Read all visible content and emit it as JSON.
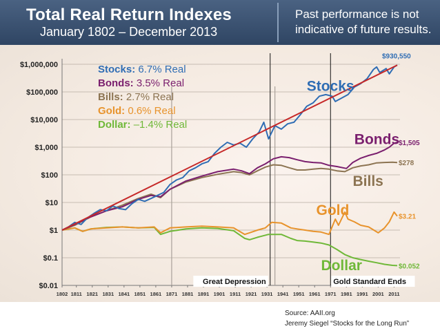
{
  "header": {
    "title": "Total Real Return Indexes",
    "subtitle": "January 1802 – December 2013",
    "disclaimer_line1": "Past performance is not",
    "disclaimer_line2": "indicative of future results."
  },
  "source": {
    "line1": "Source:  AAII.org",
    "line2": "Jeremy Siegel “Stocks for the Long Run”"
  },
  "colors": {
    "stocks": "#2f6db4",
    "bonds": "#7a1f6e",
    "bills": "#8c7452",
    "gold": "#e8932c",
    "dollar": "#6fb838",
    "trend": "#c62828",
    "grid": "#8c8c8c"
  },
  "chart_data": {
    "type": "line",
    "y_scale": "log",
    "ylim": [
      0.01,
      1000000
    ],
    "xlim": [
      1802,
      2013
    ],
    "y_ticks": [
      {
        "value": 1000000,
        "label": "$1,000,000"
      },
      {
        "value": 100000,
        "label": "$100,000"
      },
      {
        "value": 10000,
        "label": "$10,000"
      },
      {
        "value": 1000,
        "label": "$1,000"
      },
      {
        "value": 100,
        "label": "$100"
      },
      {
        "value": 10,
        "label": "$10"
      },
      {
        "value": 1,
        "label": "$1"
      },
      {
        "value": 0.1,
        "label": "$0.1"
      },
      {
        "value": 0.01,
        "label": "$0.01"
      }
    ],
    "x_ticks": [
      "1802",
      "1811",
      "1821",
      "1831",
      "1841",
      "1851",
      "1861",
      "1871",
      "1881",
      "1891",
      "1901",
      "1911",
      "1921",
      "1931",
      "1941",
      "1951",
      "1961",
      "1971",
      "1981",
      "1991",
      "2001",
      "2011"
    ],
    "legend": [
      {
        "name": "Stocks:",
        "rate": "6.7% Real",
        "key": "stocks"
      },
      {
        "name": "Bonds:",
        "rate": "3.5% Real",
        "key": "bonds"
      },
      {
        "name": "Bills:",
        "rate": "2.7% Real",
        "key": "bills"
      },
      {
        "name": "Gold:",
        "rate": "0.6% Real",
        "key": "gold"
      },
      {
        "name": "Dollar:",
        "rate": "–1.4% Real",
        "key": "dollar"
      }
    ],
    "series": [
      {
        "name": "Stocks",
        "key": "stocks",
        "end_label": "$930,550",
        "points": [
          [
            1802,
            1
          ],
          [
            1806,
            1.3
          ],
          [
            1810,
            1.9
          ],
          [
            1814,
            1.6
          ],
          [
            1818,
            2.8
          ],
          [
            1822,
            4
          ],
          [
            1826,
            5.5
          ],
          [
            1830,
            5
          ],
          [
            1834,
            7.5
          ],
          [
            1838,
            6
          ],
          [
            1842,
            5.5
          ],
          [
            1846,
            9
          ],
          [
            1850,
            13
          ],
          [
            1854,
            11
          ],
          [
            1858,
            14
          ],
          [
            1862,
            18
          ],
          [
            1866,
            23
          ],
          [
            1870,
            45
          ],
          [
            1874,
            65
          ],
          [
            1878,
            80
          ],
          [
            1882,
            140
          ],
          [
            1886,
            180
          ],
          [
            1890,
            250
          ],
          [
            1894,
            300
          ],
          [
            1898,
            600
          ],
          [
            1902,
            1000
          ],
          [
            1906,
            1500
          ],
          [
            1910,
            1200
          ],
          [
            1914,
            1400
          ],
          [
            1918,
            1000
          ],
          [
            1922,
            2000
          ],
          [
            1926,
            3500
          ],
          [
            1929,
            8000
          ],
          [
            1932,
            2000
          ],
          [
            1936,
            6000
          ],
          [
            1940,
            4500
          ],
          [
            1944,
            7000
          ],
          [
            1948,
            8000
          ],
          [
            1952,
            15000
          ],
          [
            1956,
            30000
          ],
          [
            1960,
            40000
          ],
          [
            1964,
            70000
          ],
          [
            1968,
            80000
          ],
          [
            1972,
            70000
          ],
          [
            1974,
            45000
          ],
          [
            1978,
            60000
          ],
          [
            1982,
            80000
          ],
          [
            1986,
            150000
          ],
          [
            1990,
            200000
          ],
          [
            1994,
            300000
          ],
          [
            1998,
            650000
          ],
          [
            2000,
            800000
          ],
          [
            2002,
            500000
          ],
          [
            2006,
            700000
          ],
          [
            2008,
            450000
          ],
          [
            2011,
            800000
          ],
          [
            2013,
            930550
          ]
        ]
      },
      {
        "name": "Bonds",
        "key": "bonds",
        "end_label": "$1,505",
        "points": [
          [
            1802,
            1
          ],
          [
            1810,
            1.6
          ],
          [
            1820,
            3
          ],
          [
            1830,
            5
          ],
          [
            1840,
            7
          ],
          [
            1850,
            13
          ],
          [
            1858,
            18
          ],
          [
            1864,
            16
          ],
          [
            1870,
            30
          ],
          [
            1880,
            60
          ],
          [
            1890,
            90
          ],
          [
            1900,
            130
          ],
          [
            1910,
            160
          ],
          [
            1915,
            140
          ],
          [
            1920,
            110
          ],
          [
            1925,
            180
          ],
          [
            1930,
            250
          ],
          [
            1935,
            380
          ],
          [
            1940,
            450
          ],
          [
            1945,
            420
          ],
          [
            1950,
            350
          ],
          [
            1955,
            300
          ],
          [
            1960,
            280
          ],
          [
            1965,
            270
          ],
          [
            1970,
            220
          ],
          [
            1975,
            200
          ],
          [
            1981,
            170
          ],
          [
            1985,
            280
          ],
          [
            1990,
            400
          ],
          [
            1995,
            500
          ],
          [
            2000,
            600
          ],
          [
            2005,
            800
          ],
          [
            2008,
            1000
          ],
          [
            2011,
            1400
          ],
          [
            2013,
            1505
          ]
        ]
      },
      {
        "name": "Bills",
        "key": "bills",
        "end_label": "$278",
        "points": [
          [
            1802,
            1
          ],
          [
            1810,
            1.5
          ],
          [
            1820,
            3
          ],
          [
            1830,
            5
          ],
          [
            1840,
            8
          ],
          [
            1850,
            14
          ],
          [
            1858,
            20
          ],
          [
            1864,
            15
          ],
          [
            1870,
            30
          ],
          [
            1880,
            55
          ],
          [
            1890,
            80
          ],
          [
            1900,
            105
          ],
          [
            1910,
            130
          ],
          [
            1915,
            120
          ],
          [
            1920,
            100
          ],
          [
            1925,
            140
          ],
          [
            1930,
            190
          ],
          [
            1935,
            230
          ],
          [
            1940,
            220
          ],
          [
            1945,
            180
          ],
          [
            1950,
            150
          ],
          [
            1955,
            150
          ],
          [
            1960,
            160
          ],
          [
            1965,
            170
          ],
          [
            1970,
            160
          ],
          [
            1975,
            140
          ],
          [
            1980,
            130
          ],
          [
            1985,
            180
          ],
          [
            1990,
            210
          ],
          [
            1995,
            230
          ],
          [
            2000,
            270
          ],
          [
            2005,
            280
          ],
          [
            2010,
            285
          ],
          [
            2013,
            278
          ]
        ]
      },
      {
        "name": "Gold",
        "key": "gold",
        "end_label": "$3.21",
        "points": [
          [
            1802,
            1
          ],
          [
            1810,
            1.2
          ],
          [
            1815,
            0.9
          ],
          [
            1820,
            1.1
          ],
          [
            1830,
            1.2
          ],
          [
            1840,
            1.3
          ],
          [
            1850,
            1.2
          ],
          [
            1860,
            1.3
          ],
          [
            1864,
            0.8
          ],
          [
            1870,
            1.2
          ],
          [
            1880,
            1.3
          ],
          [
            1890,
            1.4
          ],
          [
            1900,
            1.3
          ],
          [
            1910,
            1.2
          ],
          [
            1917,
            0.7
          ],
          [
            1920,
            0.8
          ],
          [
            1925,
            1
          ],
          [
            1930,
            1.2
          ],
          [
            1934,
            1.9
          ],
          [
            1940,
            1.8
          ],
          [
            1946,
            1.2
          ],
          [
            1950,
            1.1
          ],
          [
            1955,
            1.0
          ],
          [
            1960,
            0.9
          ],
          [
            1965,
            0.85
          ],
          [
            1970,
            0.7
          ],
          [
            1974,
            2.5
          ],
          [
            1976,
            1.5
          ],
          [
            1980,
            4.5
          ],
          [
            1982,
            2.5
          ],
          [
            1986,
            2
          ],
          [
            1990,
            1.5
          ],
          [
            1995,
            1.3
          ],
          [
            2001,
            0.8
          ],
          [
            2005,
            1.2
          ],
          [
            2008,
            2
          ],
          [
            2011,
            4.5
          ],
          [
            2013,
            3.21
          ]
        ]
      },
      {
        "name": "Dollar",
        "key": "dollar",
        "end_label": "$0.052",
        "points": [
          [
            1802,
            1
          ],
          [
            1810,
            1.2
          ],
          [
            1815,
            0.9
          ],
          [
            1820,
            1.1
          ],
          [
            1830,
            1.25
          ],
          [
            1840,
            1.3
          ],
          [
            1850,
            1.2
          ],
          [
            1860,
            1.25
          ],
          [
            1864,
            0.7
          ],
          [
            1870,
            0.9
          ],
          [
            1880,
            1.1
          ],
          [
            1890,
            1.2
          ],
          [
            1900,
            1.15
          ],
          [
            1910,
            0.95
          ],
          [
            1917,
            0.5
          ],
          [
            1920,
            0.45
          ],
          [
            1925,
            0.55
          ],
          [
            1932,
            0.7
          ],
          [
            1940,
            0.7
          ],
          [
            1946,
            0.5
          ],
          [
            1950,
            0.42
          ],
          [
            1955,
            0.4
          ],
          [
            1960,
            0.37
          ],
          [
            1965,
            0.34
          ],
          [
            1970,
            0.29
          ],
          [
            1975,
            0.2
          ],
          [
            1980,
            0.13
          ],
          [
            1985,
            0.1
          ],
          [
            1990,
            0.086
          ],
          [
            1995,
            0.075
          ],
          [
            2000,
            0.066
          ],
          [
            2005,
            0.058
          ],
          [
            2010,
            0.053
          ],
          [
            2013,
            0.052
          ]
        ]
      }
    ],
    "trend_line": {
      "start": [
        1802,
        1
      ],
      "end": [
        2013,
        930550
      ]
    },
    "reference_lines": [
      {
        "year": 1871,
        "style": "gray"
      },
      {
        "year": 1933,
        "style": "black",
        "label": "Great Depression"
      },
      {
        "year": 1936,
        "style": "gray"
      },
      {
        "year": 1971,
        "style": "black",
        "label": "Gold Standard Ends"
      }
    ],
    "inline_labels": [
      {
        "text": "Stocks",
        "key": "stocks",
        "year": 1956,
        "value": 110000
      },
      {
        "text": "Bonds",
        "key": "bonds",
        "year": 1986,
        "value": 1300
      },
      {
        "text": "Bills",
        "key": "bills",
        "year": 1985,
        "value": 40
      },
      {
        "text": "Gold",
        "key": "gold",
        "year": 1962,
        "value": 3.5
      },
      {
        "text": "Dollar",
        "key": "dollar",
        "year": 1965,
        "value": 0.035
      }
    ]
  }
}
